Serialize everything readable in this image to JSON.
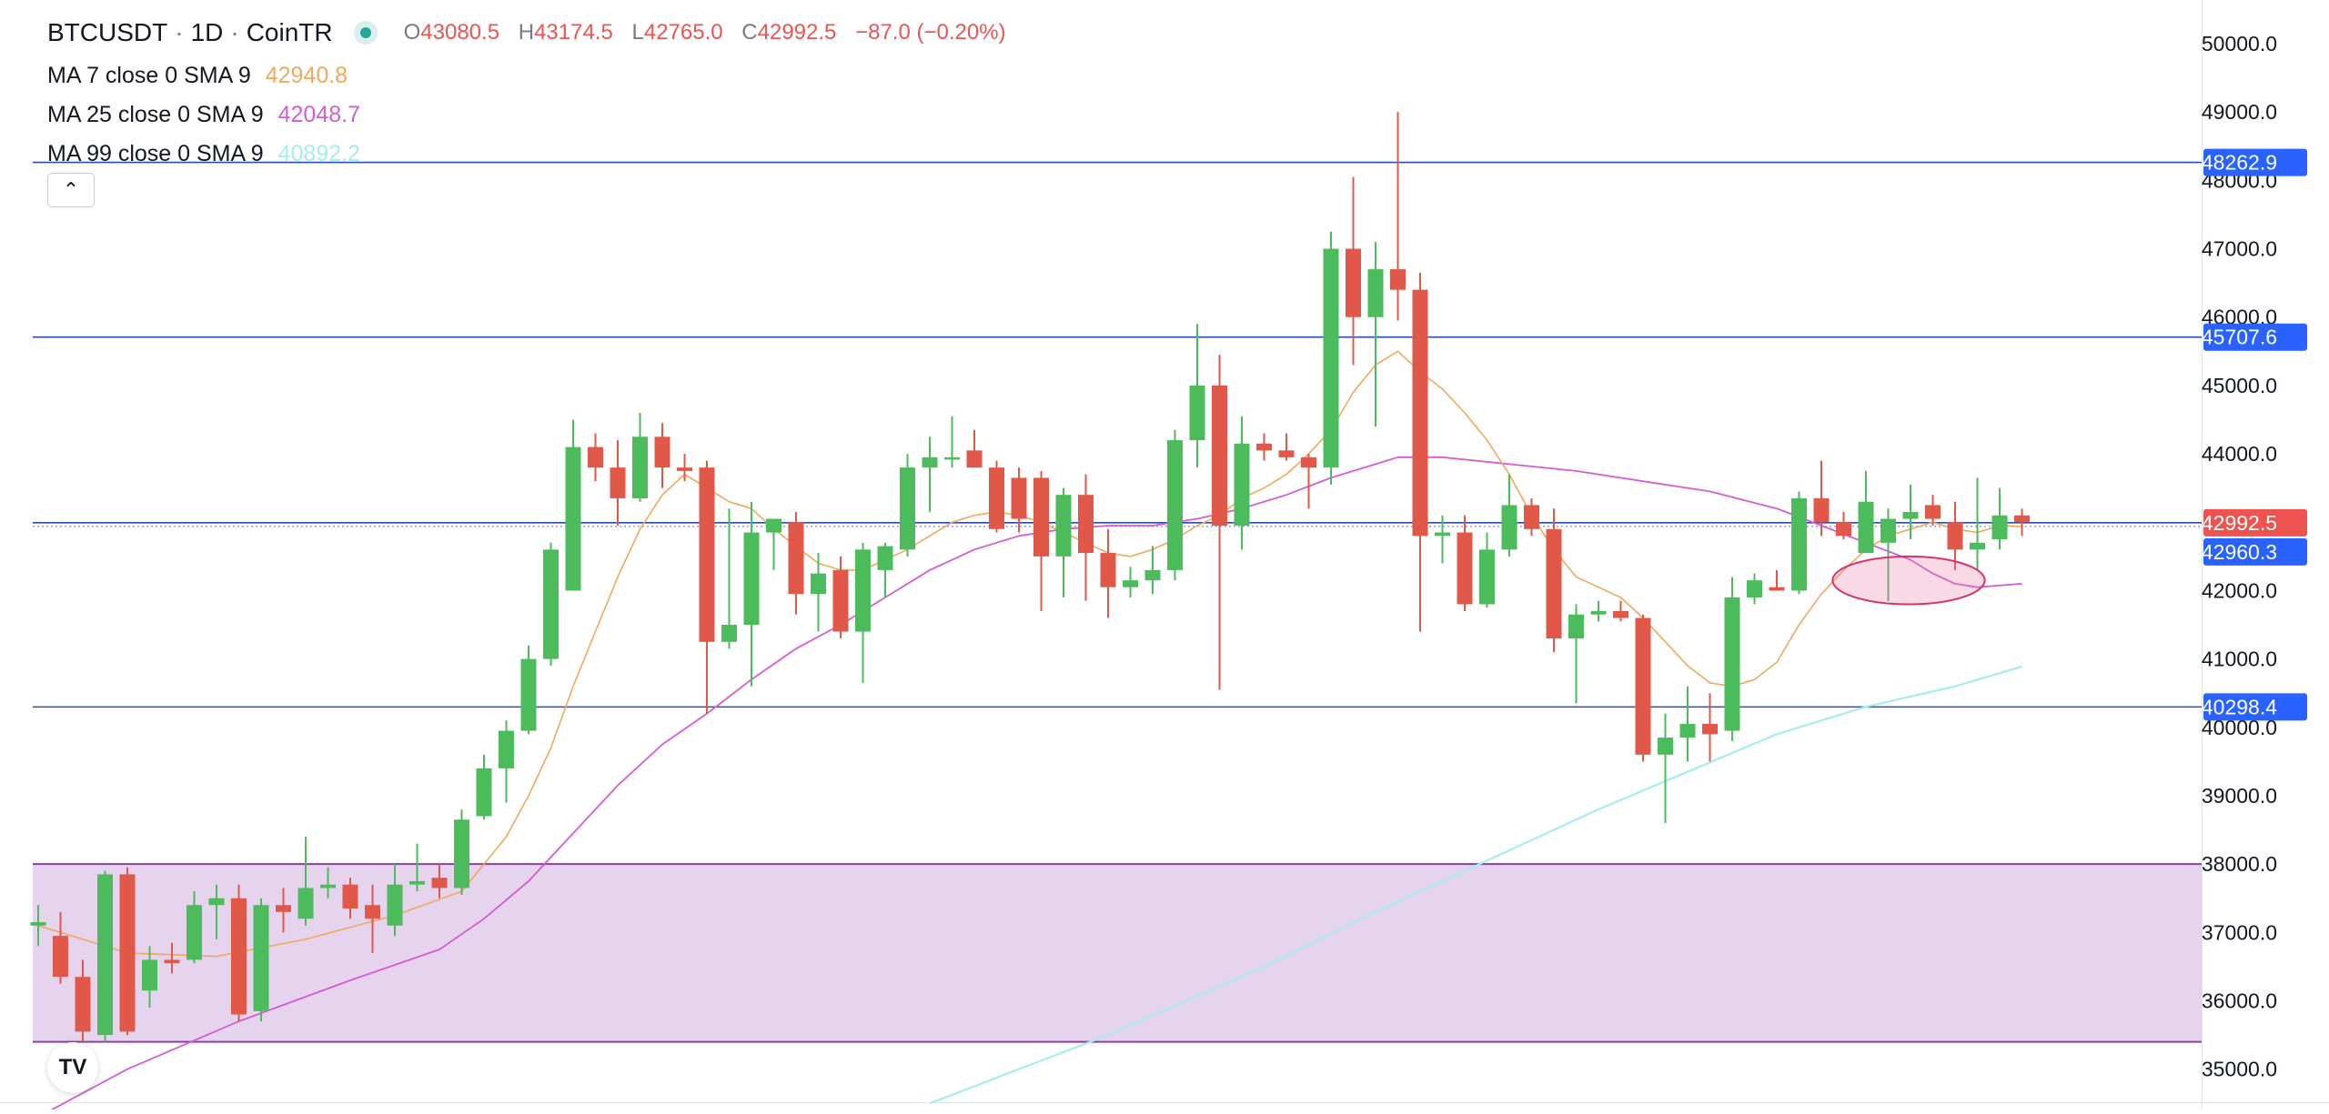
{
  "header": {
    "symbol": "BTCUSDT",
    "interval": "1D",
    "exchange": "CoinTR",
    "separator": "·",
    "ohlc": {
      "o_label": "O",
      "o": "43080.5",
      "h_label": "H",
      "h": "43174.5",
      "l_label": "L",
      "l": "42765.0",
      "c_label": "C",
      "c": "42992.5",
      "change": "−87.0 (−0.20%)"
    }
  },
  "indicators": [
    {
      "label": "MA 7 close 0 SMA 9",
      "value": "42940.8",
      "color": "#f0a95b"
    },
    {
      "label": "MA 25 close 0 SMA 9",
      "value": "42048.7",
      "color": "#d45cd4"
    },
    {
      "label": "MA 99 close 0 SMA 9",
      "value": "40892.2",
      "color": "#a6ecf0"
    }
  ],
  "controls": {
    "collapse_icon": "chevron-up-icon",
    "collapse_glyph": "⌃",
    "logo": "tradingview-logo",
    "logo_text": "TV"
  },
  "colors": {
    "up": "#4cbb5c",
    "down": "#e25848",
    "hline": "#2b4bab",
    "zone": "#e6d3ed",
    "zone_border": "#8d3fa0",
    "price_tag": "#ef5350",
    "tag_blue": "#2962ff"
  },
  "chart_data": {
    "type": "candlestick",
    "symbol": "BTCUSDT",
    "interval": "1D",
    "ylim": [
      34500,
      50500
    ],
    "y_ticks": [
      "35000.0",
      "36000.0",
      "37000.0",
      "38000.0",
      "39000.0",
      "40000.0",
      "41000.0",
      "42000.0",
      "43000.0",
      "44000.0",
      "45000.0",
      "46000.0",
      "47000.0",
      "48000.0",
      "49000.0",
      "50000.0"
    ],
    "candles": [
      {
        "o": 37100,
        "h": 37400,
        "l": 36800,
        "c": 37150
      },
      {
        "o": 36950,
        "h": 37300,
        "l": 36250,
        "c": 36350
      },
      {
        "o": 36350,
        "h": 36600,
        "l": 35400,
        "c": 35550
      },
      {
        "o": 35500,
        "h": 37900,
        "l": 35400,
        "c": 37850
      },
      {
        "o": 37850,
        "h": 37950,
        "l": 35500,
        "c": 35550
      },
      {
        "o": 36150,
        "h": 36800,
        "l": 35900,
        "c": 36600
      },
      {
        "o": 36600,
        "h": 36850,
        "l": 36400,
        "c": 36550
      },
      {
        "o": 36600,
        "h": 37600,
        "l": 36550,
        "c": 37400
      },
      {
        "o": 37400,
        "h": 37700,
        "l": 36900,
        "c": 37500
      },
      {
        "o": 37500,
        "h": 37700,
        "l": 35700,
        "c": 35800
      },
      {
        "o": 35850,
        "h": 37500,
        "l": 35700,
        "c": 37400
      },
      {
        "o": 37400,
        "h": 37650,
        "l": 37000,
        "c": 37300
      },
      {
        "o": 37200,
        "h": 38400,
        "l": 37100,
        "c": 37650
      },
      {
        "o": 37650,
        "h": 37950,
        "l": 37500,
        "c": 37700
      },
      {
        "o": 37700,
        "h": 37800,
        "l": 37200,
        "c": 37350
      },
      {
        "o": 37400,
        "h": 37700,
        "l": 36700,
        "c": 37200
      },
      {
        "o": 37100,
        "h": 38000,
        "l": 36950,
        "c": 37700
      },
      {
        "o": 37700,
        "h": 38300,
        "l": 37600,
        "c": 37750
      },
      {
        "o": 37800,
        "h": 38000,
        "l": 37500,
        "c": 37650
      },
      {
        "o": 37650,
        "h": 38800,
        "l": 37550,
        "c": 38650
      },
      {
        "o": 38700,
        "h": 39600,
        "l": 38650,
        "c": 39400
      },
      {
        "o": 39400,
        "h": 40100,
        "l": 38900,
        "c": 39950
      },
      {
        "o": 39950,
        "h": 41200,
        "l": 39900,
        "c": 41000
      },
      {
        "o": 41000,
        "h": 42700,
        "l": 40900,
        "c": 42600
      },
      {
        "o": 42000,
        "h": 44500,
        "l": 42000,
        "c": 44100
      },
      {
        "o": 44100,
        "h": 44300,
        "l": 43600,
        "c": 43800
      },
      {
        "o": 43800,
        "h": 44200,
        "l": 42950,
        "c": 43350
      },
      {
        "o": 43350,
        "h": 44600,
        "l": 43300,
        "c": 44250
      },
      {
        "o": 44250,
        "h": 44450,
        "l": 43500,
        "c": 43800
      },
      {
        "o": 43800,
        "h": 44000,
        "l": 43600,
        "c": 43750
      },
      {
        "o": 43800,
        "h": 43900,
        "l": 40200,
        "c": 41250
      },
      {
        "o": 41250,
        "h": 43200,
        "l": 41150,
        "c": 41500
      },
      {
        "o": 41500,
        "h": 43300,
        "l": 40600,
        "c": 42850
      },
      {
        "o": 42850,
        "h": 43000,
        "l": 42300,
        "c": 43050
      },
      {
        "o": 43000,
        "h": 43150,
        "l": 41650,
        "c": 41950
      },
      {
        "o": 41950,
        "h": 42550,
        "l": 41400,
        "c": 42250
      },
      {
        "o": 42300,
        "h": 42500,
        "l": 41300,
        "c": 41400
      },
      {
        "o": 41400,
        "h": 42700,
        "l": 40650,
        "c": 42600
      },
      {
        "o": 42300,
        "h": 42700,
        "l": 41900,
        "c": 42650
      },
      {
        "o": 42600,
        "h": 44000,
        "l": 42500,
        "c": 43800
      },
      {
        "o": 43800,
        "h": 44250,
        "l": 43150,
        "c": 43950
      },
      {
        "o": 43950,
        "h": 44550,
        "l": 43800,
        "c": 43950
      },
      {
        "o": 44050,
        "h": 44350,
        "l": 43800,
        "c": 43800
      },
      {
        "o": 43800,
        "h": 43900,
        "l": 42850,
        "c": 42900
      },
      {
        "o": 43650,
        "h": 43800,
        "l": 42850,
        "c": 43050
      },
      {
        "o": 43650,
        "h": 43750,
        "l": 41700,
        "c": 42500
      },
      {
        "o": 42500,
        "h": 43500,
        "l": 41900,
        "c": 43400
      },
      {
        "o": 43400,
        "h": 43700,
        "l": 41850,
        "c": 42550
      },
      {
        "o": 42550,
        "h": 42900,
        "l": 41600,
        "c": 42050
      },
      {
        "o": 42050,
        "h": 42350,
        "l": 41900,
        "c": 42150
      },
      {
        "o": 42150,
        "h": 42650,
        "l": 41950,
        "c": 42300
      },
      {
        "o": 42300,
        "h": 44350,
        "l": 42150,
        "c": 44200
      },
      {
        "o": 44200,
        "h": 45900,
        "l": 43800,
        "c": 45000
      },
      {
        "o": 45000,
        "h": 45450,
        "l": 40550,
        "c": 42950
      },
      {
        "o": 42950,
        "h": 44550,
        "l": 42600,
        "c": 44150
      },
      {
        "o": 44150,
        "h": 44300,
        "l": 43900,
        "c": 44050
      },
      {
        "o": 44050,
        "h": 44300,
        "l": 43900,
        "c": 43950
      },
      {
        "o": 43950,
        "h": 44000,
        "l": 43200,
        "c": 43800
      },
      {
        "o": 43800,
        "h": 47250,
        "l": 43550,
        "c": 47000
      },
      {
        "o": 47000,
        "h": 48050,
        "l": 45300,
        "c": 46000
      },
      {
        "o": 46000,
        "h": 47100,
        "l": 44400,
        "c": 46700
      },
      {
        "o": 46700,
        "h": 49000,
        "l": 45950,
        "c": 46400
      },
      {
        "o": 46400,
        "h": 46650,
        "l": 41400,
        "c": 42800
      },
      {
        "o": 42800,
        "h": 43100,
        "l": 42400,
        "c": 42850
      },
      {
        "o": 42850,
        "h": 43100,
        "l": 41700,
        "c": 41800
      },
      {
        "o": 41800,
        "h": 42850,
        "l": 41750,
        "c": 42600
      },
      {
        "o": 42600,
        "h": 43700,
        "l": 42500,
        "c": 43250
      },
      {
        "o": 43250,
        "h": 43350,
        "l": 42800,
        "c": 42900
      },
      {
        "o": 42900,
        "h": 43200,
        "l": 41100,
        "c": 41300
      },
      {
        "o": 41300,
        "h": 41800,
        "l": 40350,
        "c": 41650
      },
      {
        "o": 41650,
        "h": 41850,
        "l": 41550,
        "c": 41700
      },
      {
        "o": 41700,
        "h": 41850,
        "l": 41550,
        "c": 41600
      },
      {
        "o": 41600,
        "h": 41650,
        "l": 39500,
        "c": 39600
      },
      {
        "o": 39600,
        "h": 40200,
        "l": 38600,
        "c": 39850
      },
      {
        "o": 39850,
        "h": 40600,
        "l": 39500,
        "c": 40050
      },
      {
        "o": 40050,
        "h": 40500,
        "l": 39500,
        "c": 39900
      },
      {
        "o": 39950,
        "h": 42200,
        "l": 39800,
        "c": 41900
      },
      {
        "o": 41900,
        "h": 42250,
        "l": 41800,
        "c": 42150
      },
      {
        "o": 42050,
        "h": 42300,
        "l": 42000,
        "c": 42000
      },
      {
        "o": 42000,
        "h": 43450,
        "l": 41950,
        "c": 43350
      },
      {
        "o": 43350,
        "h": 43900,
        "l": 42800,
        "c": 43000
      },
      {
        "o": 43000,
        "h": 43150,
        "l": 42750,
        "c": 42800
      },
      {
        "o": 42550,
        "h": 43750,
        "l": 42550,
        "c": 43300
      },
      {
        "o": 42700,
        "h": 43200,
        "l": 41850,
        "c": 43050
      },
      {
        "o": 43050,
        "h": 43550,
        "l": 42750,
        "c": 43150
      },
      {
        "o": 43250,
        "h": 43400,
        "l": 42950,
        "c": 43050
      },
      {
        "o": 43000,
        "h": 43300,
        "l": 42300,
        "c": 42600
      },
      {
        "o": 42600,
        "h": 43650,
        "l": 42300,
        "c": 42700
      },
      {
        "o": 42750,
        "h": 43500,
        "l": 42600,
        "c": 43100
      },
      {
        "o": 43100,
        "h": 43200,
        "l": 42800,
        "c": 43000
      }
    ],
    "ma7": [
      {
        "i": 0,
        "v": 37100
      },
      {
        "i": 4,
        "v": 36700
      },
      {
        "i": 8,
        "v": 36650
      },
      {
        "i": 12,
        "v": 36900
      },
      {
        "i": 16,
        "v": 37250
      },
      {
        "i": 19,
        "v": 37600
      },
      {
        "i": 21,
        "v": 38400
      },
      {
        "i": 22,
        "v": 39000
      },
      {
        "i": 23,
        "v": 39700
      },
      {
        "i": 24,
        "v": 40600
      },
      {
        "i": 25,
        "v": 41400
      },
      {
        "i": 26,
        "v": 42200
      },
      {
        "i": 27,
        "v": 42900
      },
      {
        "i": 28,
        "v": 43400
      },
      {
        "i": 29,
        "v": 43700
      },
      {
        "i": 30,
        "v": 43500
      },
      {
        "i": 31,
        "v": 43300
      },
      {
        "i": 32,
        "v": 43200
      },
      {
        "i": 33,
        "v": 42900
      },
      {
        "i": 34,
        "v": 42650
      },
      {
        "i": 35,
        "v": 42400
      },
      {
        "i": 36,
        "v": 42300
      },
      {
        "i": 37,
        "v": 42300
      },
      {
        "i": 38,
        "v": 42450
      },
      {
        "i": 39,
        "v": 42600
      },
      {
        "i": 40,
        "v": 42800
      },
      {
        "i": 41,
        "v": 43000
      },
      {
        "i": 42,
        "v": 43100
      },
      {
        "i": 43,
        "v": 43150
      },
      {
        "i": 44,
        "v": 43100
      },
      {
        "i": 45,
        "v": 43000
      },
      {
        "i": 46,
        "v": 42850
      },
      {
        "i": 47,
        "v": 42700
      },
      {
        "i": 48,
        "v": 42550
      },
      {
        "i": 49,
        "v": 42500
      },
      {
        "i": 50,
        "v": 42600
      },
      {
        "i": 51,
        "v": 42750
      },
      {
        "i": 52,
        "v": 42950
      },
      {
        "i": 53,
        "v": 43100
      },
      {
        "i": 54,
        "v": 43350
      },
      {
        "i": 55,
        "v": 43500
      },
      {
        "i": 56,
        "v": 43700
      },
      {
        "i": 57,
        "v": 44000
      },
      {
        "i": 58,
        "v": 44350
      },
      {
        "i": 59,
        "v": 44900
      },
      {
        "i": 60,
        "v": 45300
      },
      {
        "i": 61,
        "v": 45500
      },
      {
        "i": 62,
        "v": 45200
      },
      {
        "i": 63,
        "v": 44950
      },
      {
        "i": 64,
        "v": 44600
      },
      {
        "i": 65,
        "v": 44200
      },
      {
        "i": 66,
        "v": 43700
      },
      {
        "i": 67,
        "v": 43100
      },
      {
        "i": 68,
        "v": 42600
      },
      {
        "i": 69,
        "v": 42200
      },
      {
        "i": 70,
        "v": 42050
      },
      {
        "i": 71,
        "v": 41900
      },
      {
        "i": 72,
        "v": 41600
      },
      {
        "i": 73,
        "v": 41250
      },
      {
        "i": 74,
        "v": 40900
      },
      {
        "i": 75,
        "v": 40650
      },
      {
        "i": 76,
        "v": 40600
      },
      {
        "i": 77,
        "v": 40700
      },
      {
        "i": 78,
        "v": 40950
      },
      {
        "i": 79,
        "v": 41500
      },
      {
        "i": 80,
        "v": 41950
      },
      {
        "i": 81,
        "v": 42300
      },
      {
        "i": 82,
        "v": 42600
      },
      {
        "i": 83,
        "v": 42800
      },
      {
        "i": 84,
        "v": 42900
      },
      {
        "i": 85,
        "v": 43000
      },
      {
        "i": 86,
        "v": 42900
      },
      {
        "i": 87,
        "v": 42850
      },
      {
        "i": 88,
        "v": 42950
      },
      {
        "i": 89,
        "v": 42940
      }
    ],
    "ma25": [
      {
        "i": 0,
        "v": 34300
      },
      {
        "i": 4,
        "v": 35000
      },
      {
        "i": 9,
        "v": 35700
      },
      {
        "i": 14,
        "v": 36300
      },
      {
        "i": 18,
        "v": 36750
      },
      {
        "i": 20,
        "v": 37200
      },
      {
        "i": 22,
        "v": 37750
      },
      {
        "i": 24,
        "v": 38450
      },
      {
        "i": 26,
        "v": 39150
      },
      {
        "i": 28,
        "v": 39750
      },
      {
        "i": 30,
        "v": 40200
      },
      {
        "i": 32,
        "v": 40700
      },
      {
        "i": 34,
        "v": 41150
      },
      {
        "i": 36,
        "v": 41500
      },
      {
        "i": 38,
        "v": 41900
      },
      {
        "i": 40,
        "v": 42300
      },
      {
        "i": 42,
        "v": 42600
      },
      {
        "i": 44,
        "v": 42800
      },
      {
        "i": 46,
        "v": 42900
      },
      {
        "i": 48,
        "v": 42950
      },
      {
        "i": 50,
        "v": 42950
      },
      {
        "i": 52,
        "v": 43050
      },
      {
        "i": 54,
        "v": 43200
      },
      {
        "i": 56,
        "v": 43400
      },
      {
        "i": 58,
        "v": 43650
      },
      {
        "i": 60,
        "v": 43850
      },
      {
        "i": 61,
        "v": 43950
      },
      {
        "i": 63,
        "v": 43950
      },
      {
        "i": 66,
        "v": 43850
      },
      {
        "i": 69,
        "v": 43750
      },
      {
        "i": 72,
        "v": 43600
      },
      {
        "i": 75,
        "v": 43450
      },
      {
        "i": 78,
        "v": 43200
      },
      {
        "i": 80,
        "v": 42950
      },
      {
        "i": 82,
        "v": 42700
      },
      {
        "i": 84,
        "v": 42450
      },
      {
        "i": 85,
        "v": 42250
      },
      {
        "i": 86,
        "v": 42100
      },
      {
        "i": 87,
        "v": 42050
      },
      {
        "i": 89,
        "v": 42100
      }
    ],
    "ma99": [
      {
        "i": 40,
        "v": 34500
      },
      {
        "i": 48,
        "v": 35500
      },
      {
        "i": 55,
        "v": 36500
      },
      {
        "i": 60,
        "v": 37300
      },
      {
        "i": 65,
        "v": 38050
      },
      {
        "i": 70,
        "v": 38800
      },
      {
        "i": 74,
        "v": 39350
      },
      {
        "i": 78,
        "v": 39900
      },
      {
        "i": 82,
        "v": 40300
      },
      {
        "i": 86,
        "v": 40600
      },
      {
        "i": 89,
        "v": 40890
      }
    ],
    "horizontal_levels": [
      {
        "value": 48262.9,
        "label": "48262.9"
      },
      {
        "value": 45707.6,
        "label": "45707.6"
      },
      {
        "value": 40298.4,
        "label": "40298.4"
      }
    ],
    "current_price": {
      "value": 42992.5,
      "label": "42992.5"
    },
    "secondary_price": {
      "value": 42960.3,
      "label": "42960.3"
    },
    "zone": {
      "from": 35400,
      "to": 38000
    },
    "ellipse": {
      "center_index": 84,
      "center_value": 42150,
      "span_candles": 6.5,
      "height_value": 700
    }
  }
}
